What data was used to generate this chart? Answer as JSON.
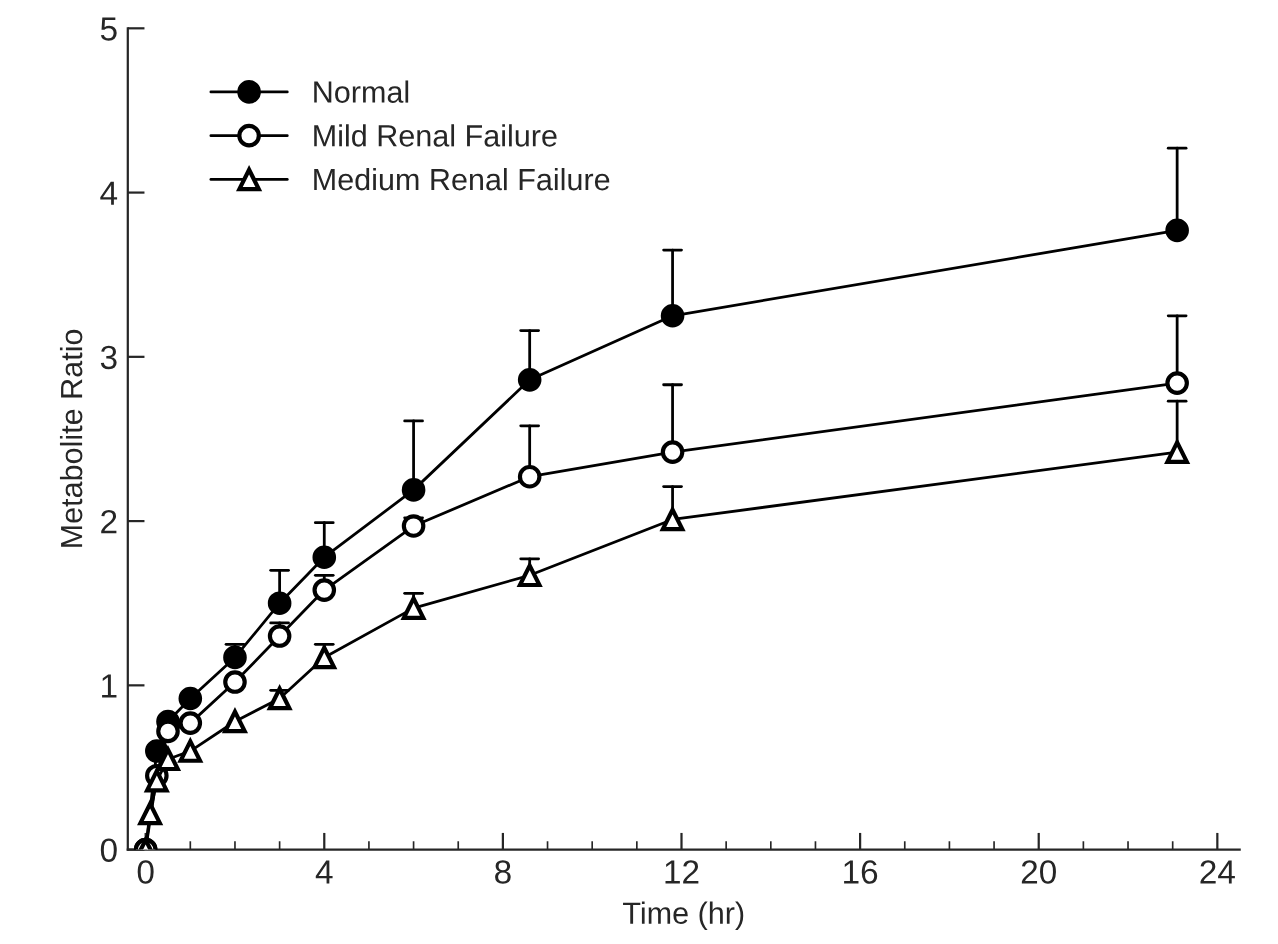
{
  "chart_data": {
    "type": "line",
    "xlabel": "Time (hr)",
    "ylabel": "Metabolite Ratio",
    "x": [
      0,
      0.25,
      0.5,
      1,
      2,
      3,
      4,
      6,
      8.6,
      11.8,
      23.1
    ],
    "series": [
      {
        "name": "Normal",
        "color": "#000000",
        "marker": "circle",
        "values": [
          0,
          0.6,
          0.78,
          0.92,
          1.17,
          1.5,
          1.78,
          2.19,
          2.86,
          3.25,
          3.77
        ],
        "errors": [
          null,
          null,
          null,
          null,
          [
            1.17,
            1.25
          ],
          [
            1.5,
            1.7
          ],
          [
            1.78,
            1.99
          ],
          [
            2.19,
            2.61
          ],
          [
            2.86,
            3.16
          ],
          [
            3.25,
            3.65
          ],
          [
            3.77,
            4.27
          ]
        ]
      },
      {
        "name": "Mild Renal Failure",
        "color": "#000000",
        "marker": "circle",
        "values": [
          0,
          0.45,
          0.72,
          0.77,
          1.02,
          1.3,
          1.58,
          1.97,
          2.27,
          2.42,
          2.84
        ],
        "errors": [
          null,
          null,
          null,
          null,
          null,
          [
            1.3,
            1.38
          ],
          [
            1.58,
            1.67
          ],
          [
            1.97,
            2.02
          ],
          [
            2.27,
            2.58
          ],
          [
            2.42,
            2.83
          ],
          [
            2.84,
            3.25
          ]
        ]
      },
      {
        "name": "Medium Renal Failure",
        "color": "#000000",
        "marker": "triangle",
        "x": [
          0,
          0.1,
          0.25,
          0.5,
          1,
          2,
          3,
          4,
          6,
          8.6,
          11.8,
          23.1
        ],
        "values": [
          0,
          0.22,
          0.42,
          0.55,
          0.6,
          0.78,
          0.92,
          1.17,
          1.47,
          1.67,
          2.01,
          2.42
        ],
        "errors": [
          null,
          null,
          null,
          null,
          null,
          null,
          [
            0.92,
            0.97
          ],
          [
            1.17,
            1.25
          ],
          [
            1.47,
            1.56
          ],
          [
            1.67,
            1.77
          ],
          [
            2.01,
            2.21
          ],
          [
            2.42,
            2.73
          ]
        ]
      }
    ],
    "xlim": [
      -0.4,
      24.5
    ],
    "ylim": [
      0,
      5
    ],
    "xticks": [
      0,
      4,
      8,
      12,
      16,
      20,
      24
    ],
    "yticks": [
      0,
      1,
      2,
      3,
      4,
      5
    ],
    "grid": false,
    "legend": "top left",
    "line_style": "solid"
  }
}
